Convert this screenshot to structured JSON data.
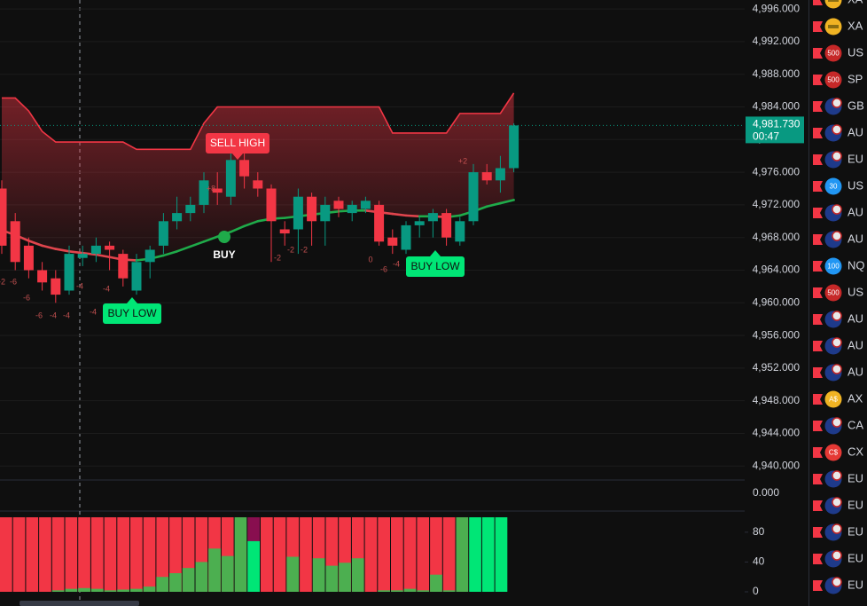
{
  "chart_data": {
    "type": "candlestick",
    "ylim": [
      4938.4,
      4997.1
    ],
    "yticks": [
      {
        "value": 4996,
        "label": "4,996.000"
      },
      {
        "value": 4992,
        "label": "4,992.000"
      },
      {
        "value": 4988,
        "label": "4,988.000"
      },
      {
        "value": 4984,
        "label": "4,984.000"
      },
      {
        "value": 4980,
        "label": "4,980.000"
      },
      {
        "value": 4976,
        "label": "4,976.000"
      },
      {
        "value": 4972,
        "label": "4,972.000"
      },
      {
        "value": 4968,
        "label": "4,968.000"
      },
      {
        "value": 4964,
        "label": "4,964.000"
      },
      {
        "value": 4960,
        "label": "4,960.000"
      },
      {
        "value": 4956,
        "label": "4,956.000"
      },
      {
        "value": 4952,
        "label": "4,952.000"
      },
      {
        "value": 4948,
        "label": "4,948.000"
      },
      {
        "value": 4944,
        "label": "4,944.000"
      },
      {
        "value": 4940,
        "label": "4,940.000"
      }
    ],
    "grid": true,
    "up_color": "#089981",
    "down_color": "#f23645",
    "open": [
      4974,
      4970,
      4967,
      4964,
      4963,
      4961.5,
      4965.5,
      4966,
      4967,
      4966,
      4961.5,
      4965,
      4967,
      4970,
      4971,
      4972,
      4974,
      4973,
      4977.5,
      4975,
      4974,
      4969,
      4969,
      4973,
      4970,
      4972.5,
      4971,
      4971.5,
      4972,
      4968,
      4966.5,
      4969.5,
      4970,
      4971,
      4967.5,
      4970,
      4976,
      4975,
      4976.5
    ],
    "high": [
      4975,
      4971,
      4968,
      4965,
      4964,
      4967,
      4967,
      4968,
      4967.5,
      4966.5,
      4966,
      4967,
      4971,
      4973,
      4973,
      4976,
      4976,
      4978.5,
      4978.5,
      4976,
      4974.5,
      4970,
      4974,
      4973.5,
      4973,
      4973,
      4972.5,
      4973,
      4972.5,
      4969,
      4970,
      4970.5,
      4971.5,
      4971.5,
      4970.5,
      4977,
      4977,
      4978,
      4982
    ],
    "low": [
      4966,
      4964,
      4963,
      4961.5,
      4960,
      4961,
      4964.5,
      4965,
      4964,
      4962,
      4961,
      4963,
      4966,
      4969,
      4970,
      4971,
      4972,
      4972,
      4974,
      4973,
      4965,
      4967,
      4966,
      4967,
      4967,
      4970.5,
      4970,
      4971,
      4967,
      4966,
      4966,
      4968,
      4968,
      4967,
      4967,
      4969.5,
      4974.5,
      4973.5,
      4976
    ],
    "close": [
      4967,
      4965,
      4964,
      4962.5,
      4961,
      4966,
      4966,
      4967,
      4966.5,
      4963,
      4965,
      4966.5,
      4970,
      4971,
      4972,
      4975,
      4973.5,
      4977.5,
      4975.5,
      4974,
      4970,
      4968.5,
      4973,
      4970,
      4972,
      4971.5,
      4972,
      4972.5,
      4967.5,
      4967,
      4969.5,
      4970,
      4971,
      4968,
      4970,
      4976,
      4975,
      4976.5,
      4981.73
    ],
    "upper_band": {
      "color": "#f23645",
      "values": [
        4985.1,
        4985.1,
        4983.5,
        4981,
        4979.7,
        4979.7,
        4979.7,
        4979.7,
        4979.7,
        4979.7,
        4978.8,
        4978.8,
        4978.8,
        4978.8,
        4978.8,
        4982,
        4984,
        4984,
        4984,
        4984,
        4984,
        4984,
        4984,
        4984,
        4984,
        4984,
        4984,
        4984,
        4984,
        4980.8,
        4980.8,
        4980.8,
        4980.8,
        4980.8,
        4983.2,
        4983.2,
        4983.2,
        4983.2,
        4985.7
      ]
    },
    "ema": {
      "up_color": "#1fab4a",
      "down_color": "#e0454d",
      "values": [
        4968.9,
        4968.3,
        4967.6,
        4967.0,
        4966.6,
        4966.3,
        4966.1,
        4965.9,
        4965.6,
        4965.3,
        4965.2,
        4965.4,
        4965.8,
        4966.3,
        4966.9,
        4967.5,
        4968.1,
        4968.7,
        4969.4,
        4970.0,
        4970.3,
        4970.4,
        4970.6,
        4970.8,
        4971.0,
        4971.2,
        4971.3,
        4971.3,
        4971.1,
        4970.9,
        4970.7,
        4970.6,
        4970.6,
        4970.5,
        4970.7,
        4971.2,
        4971.8,
        4972.2,
        4972.6
      ]
    },
    "last_price": {
      "value": 4981.73,
      "label": "4,981.730",
      "countdown": "00:47",
      "color": "#089981"
    },
    "annotations": [
      "SELL HIGH",
      "BUY LOW",
      "BUY LOW",
      "BUY"
    ],
    "count_labels": [
      "-2",
      "-6",
      "-6",
      "-6",
      "-4",
      "-4",
      "-4",
      "-4",
      "-4",
      "+8",
      "-2",
      "-2",
      "-2",
      "0",
      "-6",
      "-4",
      "+2"
    ],
    "middle_pane_ticks": [
      {
        "value": 0,
        "label": "0.000"
      }
    ],
    "oscillator": {
      "ylim": [
        0,
        100
      ],
      "yticks": [
        0,
        40,
        80
      ],
      "values": [
        100,
        100,
        100,
        100,
        100,
        100,
        100,
        100,
        100,
        100,
        100,
        100,
        100,
        100,
        100,
        100,
        100,
        100,
        100,
        100,
        100,
        100,
        100,
        100,
        100,
        100,
        100,
        100,
        100,
        100,
        100,
        100,
        100,
        100,
        100,
        100,
        100,
        100,
        100
      ],
      "colors": [
        "#f23645",
        "#f23645",
        "#f23645",
        "#f23645",
        "#f23645",
        "#f23645",
        "#f23645",
        "#f23645",
        "#f23645",
        "#f23645",
        "#f23645",
        "#f23645",
        "#f23645",
        "#f23645",
        "#f23645",
        "#f23645",
        "#f23645",
        "#f23645",
        "#4caf50",
        "#880e4f",
        "#f23645",
        "#f23645",
        "#f23645",
        "#f23645",
        "#f23645",
        "#f23645",
        "#f23645",
        "#f23645",
        "#f23645",
        "#f23645",
        "#f23645",
        "#f23645",
        "#f23645",
        "#f23645",
        "#f23645",
        "#4caf50",
        "#00e676",
        "#00e676",
        "#00e676"
      ],
      "inner": [
        0,
        0,
        0,
        0,
        2,
        4,
        5,
        4,
        2,
        3,
        4,
        7,
        20,
        25,
        32,
        40,
        58,
        48,
        100,
        68,
        0,
        0,
        47,
        0,
        45,
        35,
        39,
        45,
        0,
        2,
        2,
        4,
        2,
        23,
        2,
        100,
        100,
        100,
        100
      ],
      "inner_color": "#4caf50"
    }
  },
  "watchlist": [
    {
      "name": "XA"
    },
    {
      "name": "XA"
    },
    {
      "badge": "500",
      "name": "US"
    },
    {
      "badge": "500",
      "name": "SP"
    },
    {
      "name": "GB"
    },
    {
      "name": "AU"
    },
    {
      "name": "EU"
    },
    {
      "badge": "30",
      "name": "US"
    },
    {
      "name": "AU"
    },
    {
      "name": "AU"
    },
    {
      "badge": "100",
      "name": "NQ"
    },
    {
      "badge": "500",
      "name": "US"
    },
    {
      "name": "AU"
    },
    {
      "name": "AU"
    },
    {
      "name": "AU"
    },
    {
      "badge": "A$",
      "name": "AX"
    },
    {
      "name": "CA"
    },
    {
      "badge": "C$",
      "name": "CX"
    },
    {
      "name": "EU"
    },
    {
      "name": "EU"
    },
    {
      "name": "EU"
    },
    {
      "name": "EU"
    },
    {
      "name": "EU"
    }
  ]
}
